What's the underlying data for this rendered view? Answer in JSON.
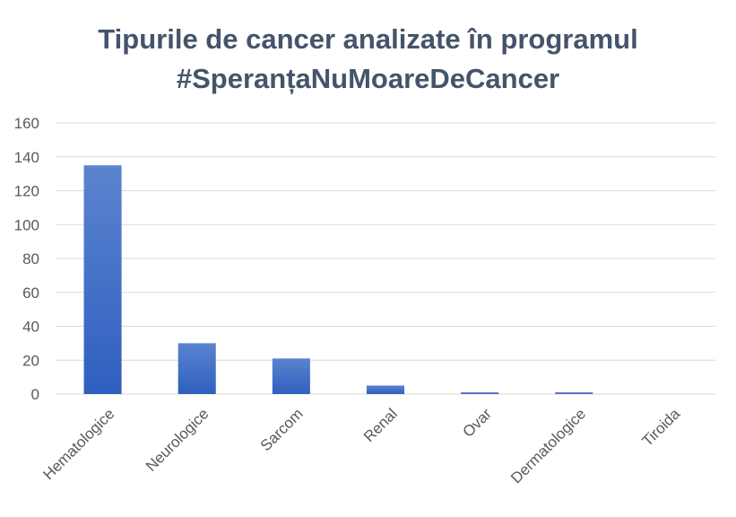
{
  "chart_data": {
    "type": "bar",
    "title_lines": [
      "Tipurile de cancer analizate în programul",
      "#SperanțaNuMoareDeCancer"
    ],
    "xlabel": "",
    "ylabel": "",
    "categories": [
      "Hematologice",
      "Neurologice",
      "Sarcom",
      "Renal",
      "Ovar",
      "Dermatologice",
      "Tiroida"
    ],
    "values": [
      135,
      30,
      21,
      5,
      1,
      1,
      0
    ],
    "ylim": [
      0,
      160
    ],
    "yticks": [
      0,
      20,
      40,
      60,
      80,
      100,
      120,
      140,
      160
    ],
    "grid": true,
    "legend": "none",
    "colors": {
      "bar_top": "#5b84cf",
      "bar_bottom": "#2f5fbf",
      "grid": "#d9d9d9",
      "text": "#595959",
      "title": "#44546a"
    }
  }
}
